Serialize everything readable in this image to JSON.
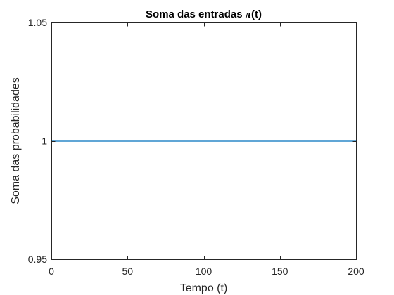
{
  "chart_data": {
    "type": "line",
    "title": "Soma das entradas ",
    "title_symbol": "π",
    "title_suffix": "(t)",
    "xlabel": "Tempo (t)",
    "ylabel": "Soma das probabilidades",
    "xlim": [
      0,
      200
    ],
    "ylim": [
      0.95,
      1.05
    ],
    "x_ticks": [
      0,
      50,
      100,
      150,
      200
    ],
    "x_tick_labels": [
      "0",
      "50",
      "100",
      "150",
      "200"
    ],
    "y_ticks": [
      0.95,
      1,
      1.05
    ],
    "y_tick_labels": [
      "0.95",
      "1",
      "1.05"
    ],
    "grid": false,
    "series": [
      {
        "x": [
          0,
          200
        ],
        "y": [
          1,
          1
        ],
        "color": "#0072BD"
      }
    ],
    "axis_color": "#262626"
  }
}
